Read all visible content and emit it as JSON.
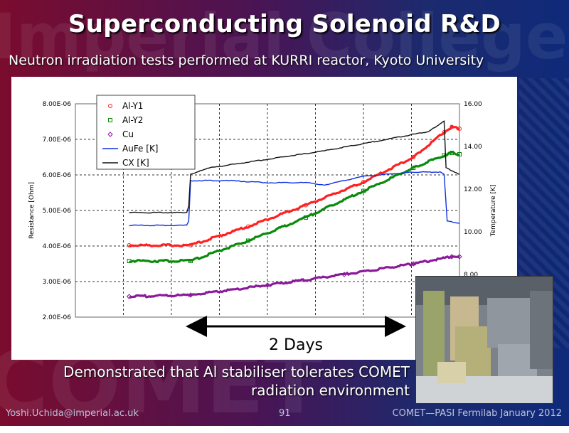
{
  "slide": {
    "title": "Superconducting Solenoid R&D",
    "subtitle": "Neutron irradiation tests performed at KURRI reactor, Kyoto University",
    "annotation": "2  Days",
    "conclusion_line1": "Demonstrated that Al stabiliser tolerates COMET",
    "conclusion_line2": "radiation environment",
    "footer_left": "Yoshi.Uchida@imperial.ac.uk",
    "footer_page": "91",
    "footer_right": "COMET—PASI Fermilab January 2012",
    "watermark1": "Imperial College",
    "watermark2": "COMET"
  },
  "chart_data": {
    "type": "line",
    "title": "",
    "xlabel": "",
    "ylabel": "Resistance [Ohm]",
    "y2label": "Temperature [K]",
    "x_range": [
      0,
      100
    ],
    "ylim": [
      2e-06,
      8e-06
    ],
    "y2lim": [
      6.0,
      16.0
    ],
    "y_ticks": [
      "2.00E-06",
      "3.00E-06",
      "4.00E-06",
      "5.00E-06",
      "6.00E-06",
      "7.00E-06",
      "8.00E-06"
    ],
    "y2_ticks": [
      "8.00",
      "10.00",
      "12.00",
      "14.00",
      "16.00"
    ],
    "grid": true,
    "legend_position": "top-left",
    "series": [
      {
        "name": "Al-Y1",
        "axis": "left",
        "color": "#ff2020",
        "marker": "circle",
        "points": [
          [
            14,
            4.02e-06
          ],
          [
            30,
            4.02e-06
          ],
          [
            45,
            4.55e-06
          ],
          [
            60,
            5.15e-06
          ],
          [
            75,
            5.8e-06
          ],
          [
            88,
            6.5e-06
          ],
          [
            96,
            7.2e-06
          ],
          [
            98,
            7.35e-06
          ],
          [
            100,
            7.3e-06
          ]
        ]
      },
      {
        "name": "Al-Y2",
        "axis": "left",
        "color": "#0a8a0a",
        "marker": "square",
        "points": [
          [
            14,
            3.58e-06
          ],
          [
            30,
            3.58e-06
          ],
          [
            45,
            4.15e-06
          ],
          [
            60,
            4.8e-06
          ],
          [
            75,
            5.55e-06
          ],
          [
            88,
            6.2e-06
          ],
          [
            96,
            6.55e-06
          ],
          [
            98,
            6.62e-06
          ],
          [
            100,
            6.58e-06
          ]
        ]
      },
      {
        "name": "Cu",
        "axis": "left",
        "color": "#8a1a9a",
        "marker": "diamond",
        "points": [
          [
            14,
            2.58e-06
          ],
          [
            30,
            2.62e-06
          ],
          [
            50,
            2.9e-06
          ],
          [
            70,
            3.2e-06
          ],
          [
            88,
            3.5e-06
          ],
          [
            98,
            3.7e-06
          ],
          [
            100,
            3.7e-06
          ]
        ]
      },
      {
        "name": "AuFe [K]",
        "axis": "right",
        "color": "#1030e0",
        "marker": "none",
        "points": [
          [
            14,
            10.3
          ],
          [
            29,
            10.3
          ],
          [
            29.5,
            10.5
          ],
          [
            30,
            12.4
          ],
          [
            40,
            12.4
          ],
          [
            50,
            12.3
          ],
          [
            60,
            12.3
          ],
          [
            65,
            12.2
          ],
          [
            75,
            12.6
          ],
          [
            88,
            12.8
          ],
          [
            95,
            12.8
          ],
          [
            96,
            12.7
          ],
          [
            96.8,
            10.5
          ],
          [
            100,
            10.4
          ]
        ]
      },
      {
        "name": "CX [K]",
        "axis": "right",
        "color": "#111111",
        "marker": "none",
        "points": [
          [
            14,
            10.9
          ],
          [
            29,
            10.9
          ],
          [
            29.5,
            11.2
          ],
          [
            30,
            12.7
          ],
          [
            35,
            13.0
          ],
          [
            50,
            13.4
          ],
          [
            65,
            13.8
          ],
          [
            80,
            14.3
          ],
          [
            92,
            14.7
          ],
          [
            96,
            15.2
          ],
          [
            96.5,
            13.0
          ],
          [
            100,
            12.7
          ]
        ]
      }
    ]
  },
  "photo": {
    "label": "reactor-hall-photo"
  }
}
